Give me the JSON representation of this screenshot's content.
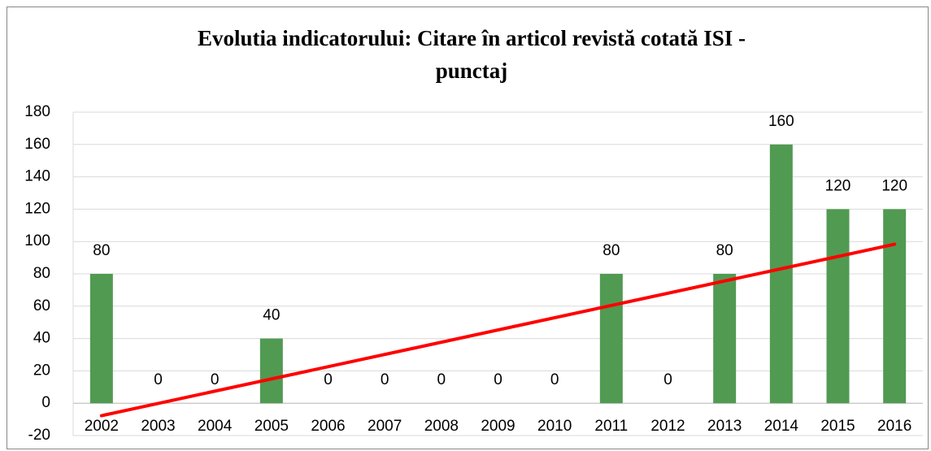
{
  "chart_data": {
    "type": "bar",
    "title": [
      "Evolutia indicatorului: Citare în articol revistă cotată ISI -",
      "punctaj"
    ],
    "categories": [
      "2002",
      "2003",
      "2004",
      "2005",
      "2006",
      "2007",
      "2008",
      "2009",
      "2010",
      "2011",
      "2012",
      "2013",
      "2014",
      "2015",
      "2016"
    ],
    "values": [
      80,
      0,
      0,
      40,
      0,
      0,
      0,
      0,
      0,
      80,
      0,
      80,
      160,
      120,
      120
    ],
    "color": "#519a52",
    "ylim": [
      -20,
      180
    ],
    "yticks": [
      -20,
      0,
      20,
      40,
      60,
      80,
      100,
      120,
      140,
      160,
      180
    ],
    "grid": true,
    "trendline": {
      "color": "#ff0000",
      "values": [
        -7.7,
        98.3
      ]
    }
  }
}
